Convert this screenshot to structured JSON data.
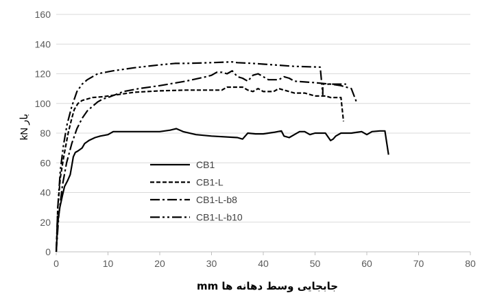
{
  "chart_data": {
    "type": "line",
    "title": "",
    "xlabel": "جابجایی وسط دهانه ها mm",
    "ylabel": "بار kN",
    "xlim": [
      0,
      80
    ],
    "ylim": [
      0,
      160
    ],
    "xticks": [
      0,
      10,
      20,
      30,
      40,
      50,
      60,
      70,
      80
    ],
    "yticks": [
      0,
      20,
      40,
      60,
      80,
      100,
      120,
      140,
      160
    ],
    "grid": "horizontal",
    "legend_position": "center-left",
    "series": [
      {
        "name": "CB1",
        "dash": "solid",
        "points": [
          [
            0,
            0
          ],
          [
            0.3,
            20
          ],
          [
            0.7,
            30
          ],
          [
            1.2,
            38
          ],
          [
            1.6,
            44
          ],
          [
            2.2,
            48
          ],
          [
            2.7,
            52
          ],
          [
            3,
            58
          ],
          [
            3.3,
            64
          ],
          [
            3.7,
            67
          ],
          [
            4.2,
            68
          ],
          [
            5,
            70
          ],
          [
            5.5,
            73
          ],
          [
            6.3,
            75
          ],
          [
            7.5,
            77
          ],
          [
            8.5,
            78
          ],
          [
            10,
            79
          ],
          [
            11,
            81
          ],
          [
            15,
            81
          ],
          [
            20,
            81
          ],
          [
            22,
            82
          ],
          [
            23.2,
            83
          ],
          [
            24.5,
            81
          ],
          [
            27,
            79
          ],
          [
            30,
            78
          ],
          [
            35,
            77
          ],
          [
            36,
            76
          ],
          [
            37,
            80
          ],
          [
            38.5,
            79.5
          ],
          [
            40,
            79.5
          ],
          [
            42,
            80.5
          ],
          [
            43.5,
            81.5
          ],
          [
            44,
            78
          ],
          [
            45,
            77
          ],
          [
            46,
            79
          ],
          [
            47,
            81
          ],
          [
            48,
            81
          ],
          [
            49,
            79
          ],
          [
            50,
            80
          ],
          [
            51,
            80
          ],
          [
            52,
            80
          ],
          [
            53,
            75
          ],
          [
            53.5,
            76
          ],
          [
            54,
            78
          ],
          [
            55,
            80
          ],
          [
            56,
            80
          ],
          [
            57,
            80
          ],
          [
            58,
            80.5
          ],
          [
            59,
            81
          ],
          [
            60,
            79
          ],
          [
            61,
            81
          ],
          [
            62.5,
            81.5
          ],
          [
            63.5,
            81.5
          ],
          [
            64.2,
            65.5
          ]
        ]
      },
      {
        "name": "CB1-L",
        "dash": "dash",
        "points": [
          [
            0,
            0
          ],
          [
            0.3,
            30
          ],
          [
            0.8,
            50
          ],
          [
            1.5,
            65
          ],
          [
            2.3,
            80
          ],
          [
            3,
            90
          ],
          [
            3.5,
            96
          ],
          [
            4.2,
            100
          ],
          [
            5,
            102
          ],
          [
            6,
            103
          ],
          [
            7,
            104
          ],
          [
            9,
            104.5
          ],
          [
            12,
            106
          ],
          [
            15,
            107.5
          ],
          [
            20,
            108.5
          ],
          [
            25,
            109
          ],
          [
            30,
            109
          ],
          [
            32,
            109
          ],
          [
            33,
            111
          ],
          [
            36,
            111
          ],
          [
            37,
            109
          ],
          [
            38,
            108
          ],
          [
            39,
            110
          ],
          [
            40,
            108
          ],
          [
            42,
            108
          ],
          [
            43,
            110
          ],
          [
            44,
            109
          ],
          [
            45,
            108
          ],
          [
            46,
            107
          ],
          [
            48,
            107
          ],
          [
            50,
            105
          ],
          [
            52,
            105
          ],
          [
            53,
            104
          ],
          [
            55,
            104
          ],
          [
            55.5,
            88
          ]
        ]
      },
      {
        "name": "CB1-L-b8",
        "dash": "dashdot",
        "points": [
          [
            0,
            0
          ],
          [
            0.5,
            25
          ],
          [
            1.2,
            45
          ],
          [
            2,
            60
          ],
          [
            3,
            73
          ],
          [
            4,
            83
          ],
          [
            5,
            90
          ],
          [
            6,
            95
          ],
          [
            7,
            98
          ],
          [
            8,
            101
          ],
          [
            9,
            103
          ],
          [
            10,
            104
          ],
          [
            13,
            108
          ],
          [
            16,
            110
          ],
          [
            20,
            112
          ],
          [
            25,
            115
          ],
          [
            29,
            118
          ],
          [
            30,
            119
          ],
          [
            31,
            121
          ],
          [
            32,
            121
          ],
          [
            33,
            120
          ],
          [
            34,
            122
          ],
          [
            35,
            118
          ],
          [
            36,
            117
          ],
          [
            37,
            115
          ],
          [
            38,
            119
          ],
          [
            39,
            120
          ],
          [
            40,
            118
          ],
          [
            41,
            116
          ],
          [
            43,
            116
          ],
          [
            44,
            118
          ],
          [
            45,
            117
          ],
          [
            46,
            115
          ],
          [
            50,
            114
          ],
          [
            53,
            113
          ],
          [
            55,
            112
          ],
          [
            57,
            110
          ],
          [
            58,
            101
          ]
        ]
      },
      {
        "name": "CB1-L-b10",
        "dash": "dashdotdot",
        "points": [
          [
            0,
            0
          ],
          [
            0.3,
            30
          ],
          [
            0.8,
            55
          ],
          [
            1.4,
            72
          ],
          [
            2.1,
            86
          ],
          [
            3,
            98
          ],
          [
            4,
            108
          ],
          [
            5,
            113
          ],
          [
            6,
            116
          ],
          [
            8,
            120
          ],
          [
            11,
            122
          ],
          [
            15,
            124
          ],
          [
            20,
            126
          ],
          [
            23,
            127
          ],
          [
            25,
            127
          ],
          [
            30,
            127.5
          ],
          [
            34,
            128
          ],
          [
            35,
            127.5
          ],
          [
            38,
            127
          ],
          [
            42,
            126
          ],
          [
            46,
            125
          ],
          [
            51,
            124.5
          ],
          [
            51.5,
            106
          ],
          [
            51.5,
            113
          ],
          [
            54,
            113
          ],
          [
            56,
            113
          ]
        ]
      }
    ]
  }
}
